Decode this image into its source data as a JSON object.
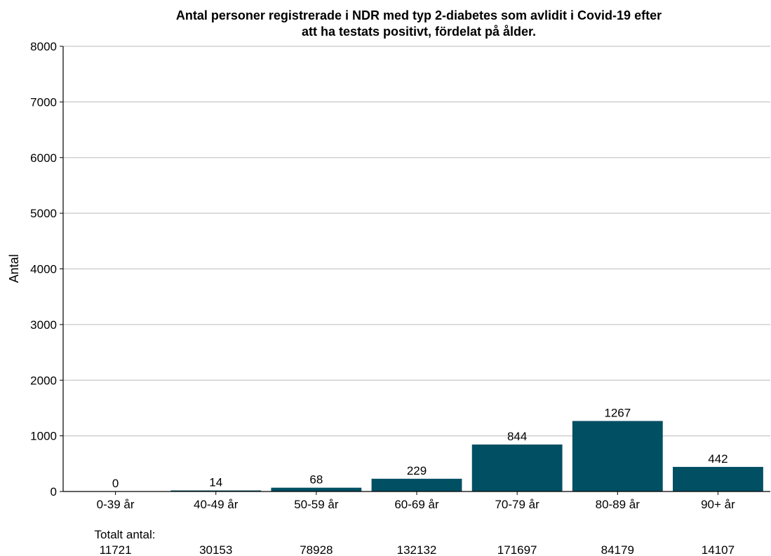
{
  "chart_data": {
    "type": "bar",
    "title_line1": "Antal personer registrerade i NDR med typ 2-diabetes som avlidit i Covid-19 efter",
    "title_line2": "att ha testats positivt, fördelat på ålder.",
    "xlabel": "",
    "ylabel": "Antal",
    "ylim": [
      0,
      8000
    ],
    "yticks": [
      0,
      1000,
      2000,
      3000,
      4000,
      5000,
      6000,
      7000,
      8000
    ],
    "grid": true,
    "categories": [
      "0-39 år",
      "40-49 år",
      "50-59 år",
      "60-69 år",
      "70-79 år",
      "80-89 år",
      "90+ år"
    ],
    "values": [
      0,
      14,
      68,
      229,
      844,
      1267,
      442
    ],
    "bar_color": "#004f63",
    "totals_label": "Totalt antal:",
    "totals": [
      11721,
      30153,
      78928,
      132132,
      171697,
      84179,
      14107
    ]
  }
}
